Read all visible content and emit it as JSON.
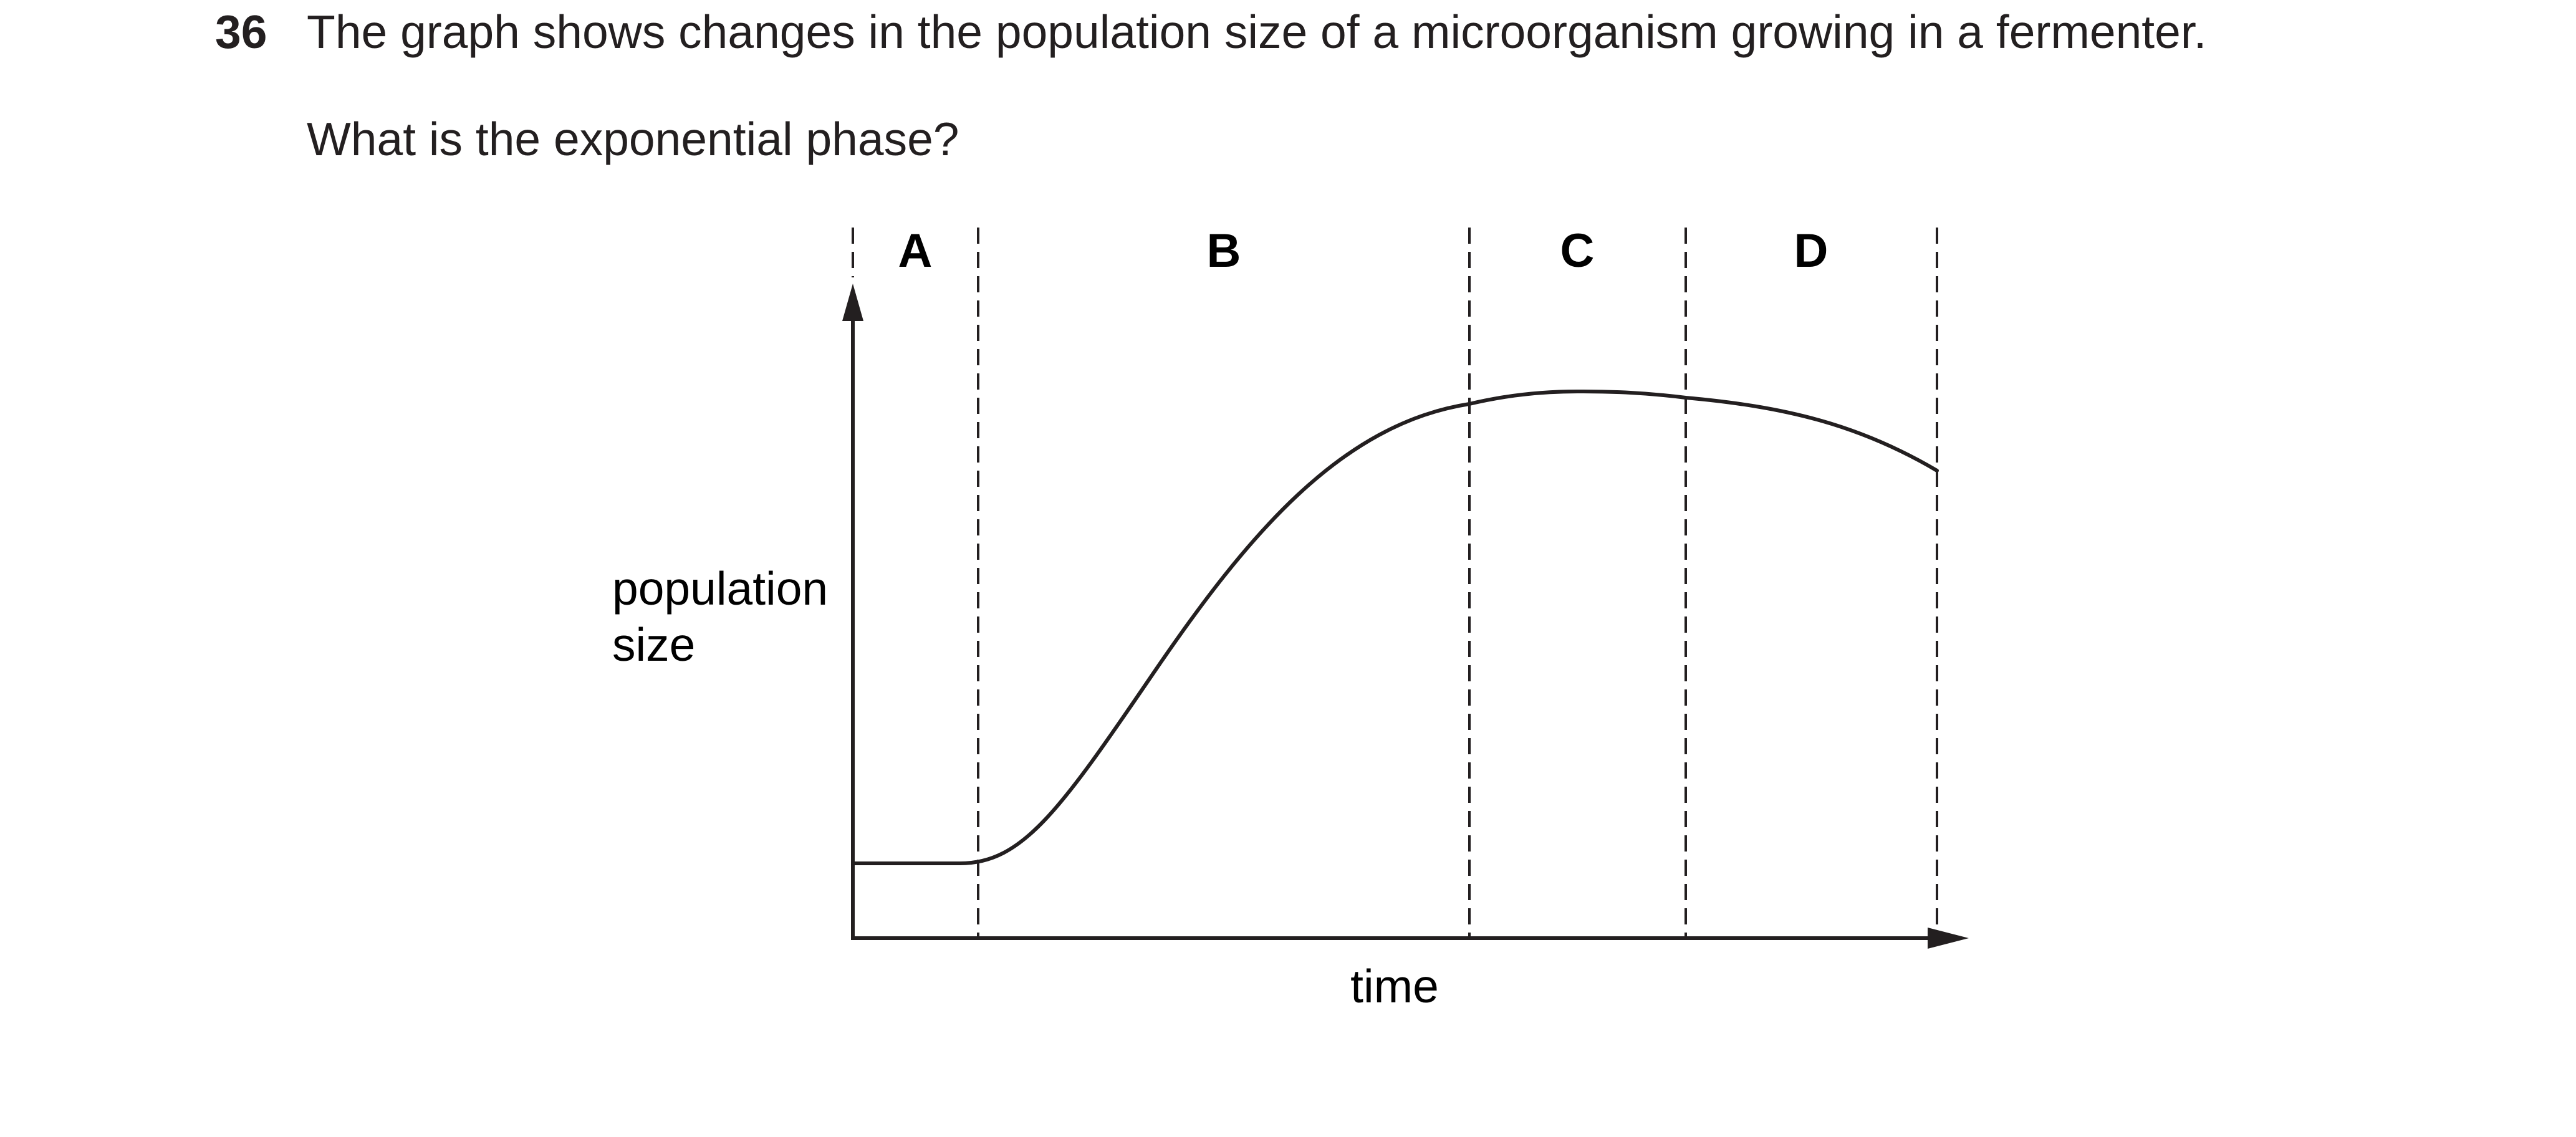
{
  "question": {
    "number": "36",
    "stem": "The graph shows changes in the population size of a microorganism growing in a fermenter.",
    "prompt": "What is the exponential phase?"
  },
  "graph": {
    "ylabel_lines": [
      "population",
      "size"
    ],
    "xlabel": "time",
    "regions": [
      "A",
      "B",
      "C",
      "D"
    ],
    "line_color": "#231f20"
  }
}
